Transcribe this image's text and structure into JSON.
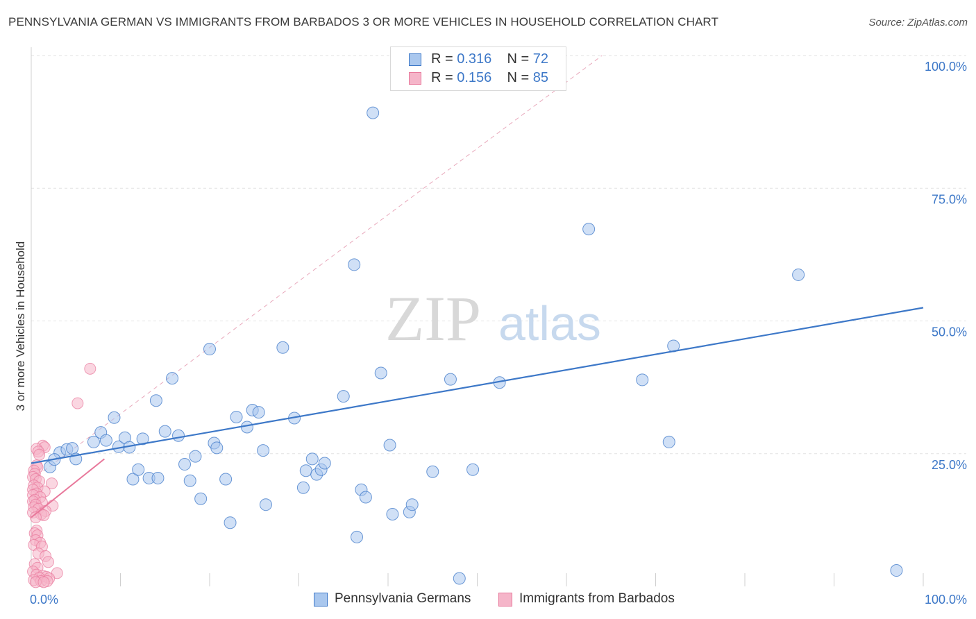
{
  "title": "PENNSYLVANIA GERMAN VS IMMIGRANTS FROM BARBADOS 3 OR MORE VEHICLES IN HOUSEHOLD CORRELATION CHART",
  "source": "Source: ZipAtlas.com",
  "watermark": {
    "zip": "ZIP",
    "atlas": "atlas"
  },
  "legend_top": [
    {
      "r_label": "R =",
      "r_value": "0.316",
      "n_label": "N =",
      "n_value": "72"
    },
    {
      "r_label": "R =",
      "r_value": "0.156",
      "n_label": "N =",
      "n_value": "85"
    }
  ],
  "chart_data": {
    "type": "scatter",
    "title": "PENNSYLVANIA GERMAN VS IMMIGRANTS FROM BARBADOS 3 OR MORE VEHICLES IN HOUSEHOLD CORRELATION CHART",
    "xlabel": "",
    "ylabel": "3 or more Vehicles in Household",
    "xlim": [
      0,
      100
    ],
    "ylim": [
      0,
      100
    ],
    "x_tick_labels": [
      "0.0%",
      "100.0%"
    ],
    "y_tick_labels": [
      "25.0%",
      "50.0%",
      "75.0%",
      "100.0%"
    ],
    "y_ticks": [
      25,
      50,
      75,
      100
    ],
    "grid": true,
    "colors": {
      "blue": "#3d78c8",
      "blue_fill": "#a9c7ee",
      "pink": "#e8789b",
      "pink_fill": "#f5b5c9",
      "label_blue": "#3d78c8"
    },
    "series": [
      {
        "name": "Pennsylvania Germans",
        "color": "#3d78c8",
        "trend": {
          "x": [
            0,
            100
          ],
          "y": [
            23.2,
            52.5
          ]
        },
        "points": [
          [
            3.2,
            25.2
          ],
          [
            4.0,
            25.8
          ],
          [
            4.6,
            26.0
          ],
          [
            5.0,
            24.0
          ],
          [
            2.1,
            22.5
          ],
          [
            2.6,
            23.9
          ],
          [
            7.0,
            27.2
          ],
          [
            7.8,
            29.0
          ],
          [
            8.4,
            27.5
          ],
          [
            9.3,
            31.8
          ],
          [
            9.8,
            26.3
          ],
          [
            10.5,
            28.0
          ],
          [
            11.0,
            26.2
          ],
          [
            11.4,
            20.2
          ],
          [
            12.0,
            22.0
          ],
          [
            12.5,
            27.8
          ],
          [
            13.2,
            20.4
          ],
          [
            14.0,
            35.0
          ],
          [
            14.2,
            20.4
          ],
          [
            15.0,
            29.2
          ],
          [
            15.8,
            39.2
          ],
          [
            16.5,
            28.4
          ],
          [
            17.2,
            23.0
          ],
          [
            17.8,
            19.9
          ],
          [
            18.4,
            24.5
          ],
          [
            19.0,
            16.5
          ],
          [
            20.0,
            44.7
          ],
          [
            20.5,
            27.0
          ],
          [
            20.8,
            26.1
          ],
          [
            21.8,
            20.2
          ],
          [
            22.3,
            12.0
          ],
          [
            23.0,
            31.9
          ],
          [
            24.2,
            30.0
          ],
          [
            24.8,
            33.2
          ],
          [
            25.5,
            32.8
          ],
          [
            26.0,
            25.6
          ],
          [
            26.3,
            15.4
          ],
          [
            28.2,
            45.0
          ],
          [
            29.5,
            31.7
          ],
          [
            30.5,
            18.6
          ],
          [
            30.8,
            21.8
          ],
          [
            31.5,
            24.0
          ],
          [
            32.0,
            21.1
          ],
          [
            32.5,
            22.0
          ],
          [
            32.9,
            23.2
          ],
          [
            35.0,
            35.8
          ],
          [
            36.2,
            60.6
          ],
          [
            36.5,
            9.3
          ],
          [
            37.0,
            18.2
          ],
          [
            37.5,
            16.8
          ],
          [
            38.3,
            89.2
          ],
          [
            39.2,
            40.2
          ],
          [
            40.2,
            26.6
          ],
          [
            40.5,
            13.6
          ],
          [
            42.4,
            14.0
          ],
          [
            42.7,
            15.4
          ],
          [
            45.0,
            21.6
          ],
          [
            47.0,
            39.0
          ],
          [
            49.5,
            22.0
          ],
          [
            52.5,
            38.4
          ],
          [
            62.5,
            67.3
          ],
          [
            68.5,
            38.9
          ],
          [
            71.5,
            27.2
          ],
          [
            72.0,
            45.3
          ],
          [
            86.0,
            58.7
          ],
          [
            97.0,
            3.0
          ],
          [
            48.0,
            1.5
          ]
        ]
      },
      {
        "name": "Immigrants from Barbados",
        "color": "#e8789b",
        "trend": {
          "x": [
            0,
            8.2
          ],
          "y": [
            13.0,
            24.0
          ]
        },
        "points": [
          [
            6.6,
            41.0
          ],
          [
            5.2,
            34.5
          ],
          [
            1.3,
            26.5
          ],
          [
            1.5,
            26.2
          ],
          [
            0.6,
            25.9
          ],
          [
            0.8,
            25.4
          ],
          [
            0.9,
            24.8
          ],
          [
            0.6,
            22.8
          ],
          [
            0.7,
            22.4
          ],
          [
            0.3,
            21.8
          ],
          [
            0.4,
            21.2
          ],
          [
            0.2,
            20.6
          ],
          [
            0.5,
            20.2
          ],
          [
            0.9,
            19.8
          ],
          [
            2.3,
            19.4
          ],
          [
            0.3,
            19.0
          ],
          [
            0.7,
            18.6
          ],
          [
            0.2,
            18.2
          ],
          [
            1.5,
            17.9
          ],
          [
            0.6,
            17.5
          ],
          [
            0.2,
            17.2
          ],
          [
            1.0,
            16.8
          ],
          [
            0.4,
            16.3
          ],
          [
            0.2,
            16.0
          ],
          [
            1.2,
            15.8
          ],
          [
            0.5,
            15.4
          ],
          [
            2.4,
            15.2
          ],
          [
            0.3,
            14.9
          ],
          [
            0.8,
            14.6
          ],
          [
            1.6,
            14.2
          ],
          [
            0.2,
            13.9
          ],
          [
            1.1,
            13.6
          ],
          [
            1.4,
            13.4
          ],
          [
            0.5,
            13.0
          ],
          [
            0.6,
            10.5
          ],
          [
            0.4,
            10.0
          ],
          [
            0.7,
            9.6
          ],
          [
            0.5,
            8.7
          ],
          [
            1.0,
            8.2
          ],
          [
            0.3,
            7.8
          ],
          [
            1.2,
            7.5
          ],
          [
            0.8,
            6.2
          ],
          [
            1.6,
            5.7
          ],
          [
            1.9,
            4.6
          ],
          [
            0.4,
            4.2
          ],
          [
            0.7,
            3.5
          ],
          [
            0.2,
            2.8
          ],
          [
            2.9,
            2.5
          ],
          [
            0.6,
            2.2
          ],
          [
            1.3,
            2.0
          ],
          [
            1.7,
            1.8
          ],
          [
            0.9,
            1.6
          ],
          [
            2.0,
            1.5
          ],
          [
            0.3,
            1.2
          ],
          [
            1.1,
            1.0
          ],
          [
            1.8,
            1.0
          ],
          [
            0.5,
            0.8
          ],
          [
            1.4,
            0.8
          ]
        ]
      }
    ],
    "reference_line": {
      "style": "dashed",
      "x": [
        0,
        64
      ],
      "y": [
        20,
        100
      ]
    }
  },
  "legend_bottom": [
    {
      "label": "Pennsylvania Germans"
    },
    {
      "label": "Immigrants from Barbados"
    }
  ]
}
